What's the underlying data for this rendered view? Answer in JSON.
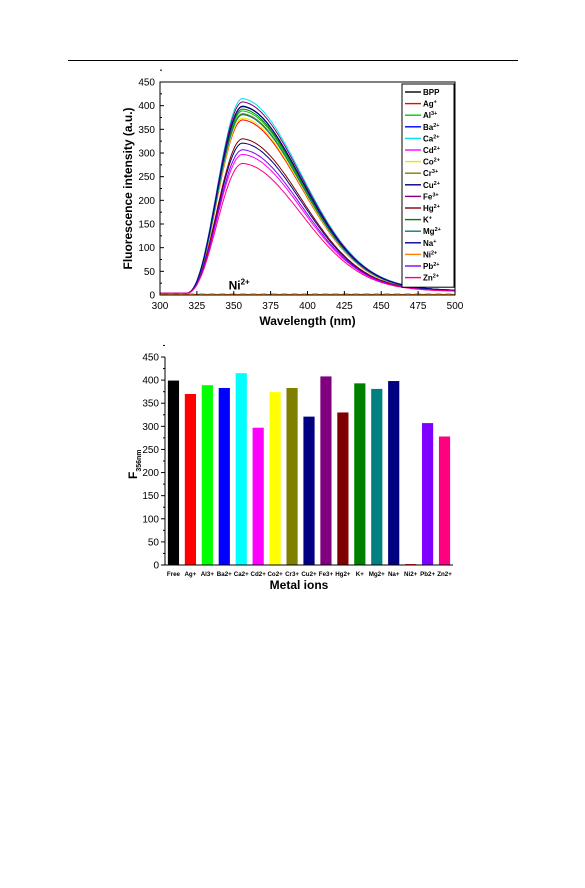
{
  "chart_data": [
    {
      "type": "line",
      "xlabel": "Wavelength (nm)",
      "ylabel": "Fluorescence intensity (a.u.)",
      "xlim": [
        300,
        500
      ],
      "ylim": [
        0,
        450
      ],
      "xticks": [
        "300",
        "325",
        "350",
        "375",
        "400",
        "425",
        "450",
        "475",
        "500"
      ],
      "yticks": [
        "0",
        "50",
        "100",
        "150",
        "200",
        "250",
        "300",
        "350",
        "400",
        "450"
      ],
      "legend_position": "right",
      "annotation": {
        "base": "Ni",
        "sup": "2+",
        "x": 356,
        "y": 12
      },
      "series": [
        {
          "name": "BPP",
          "sup": "",
          "color": "#000000",
          "peak": 399
        },
        {
          "name": "Ag",
          "sup": "+",
          "color": "#ff0000",
          "peak": 370
        },
        {
          "name": "Al",
          "sup": "3+",
          "color": "#00cc00",
          "peak": 389
        },
        {
          "name": "Ba",
          "sup": "2+",
          "color": "#0000ff",
          "peak": 383
        },
        {
          "name": "Ca",
          "sup": "2+",
          "color": "#00e5ee",
          "peak": 415
        },
        {
          "name": "Cd",
          "sup": "2+",
          "color": "#ff00ff",
          "peak": 297
        },
        {
          "name": "Co",
          "sup": "2+",
          "color": "#e8e800",
          "peak": 374
        },
        {
          "name": "Cr",
          "sup": "3+",
          "color": "#808000",
          "peak": 383
        },
        {
          "name": "Cu",
          "sup": "2+",
          "color": "#000080",
          "peak": 321
        },
        {
          "name": "Fe",
          "sup": "3+",
          "color": "#800080",
          "peak": 408
        },
        {
          "name": "Hg",
          "sup": "2+",
          "color": "#800000",
          "peak": 330
        },
        {
          "name": "K",
          "sup": "+",
          "color": "#008000",
          "peak": 393
        },
        {
          "name": "Mg",
          "sup": "2+",
          "color": "#008080",
          "peak": 381
        },
        {
          "name": "Na",
          "sup": "+",
          "color": "#000099",
          "peak": 398
        },
        {
          "name": "Ni",
          "sup": "2+",
          "color": "#ff8000",
          "peak": 2
        },
        {
          "name": "Pb",
          "sup": "2+",
          "color": "#8000ff",
          "peak": 307
        },
        {
          "name": "Zn",
          "sup": "2+",
          "color": "#ff0080",
          "peak": 278
        }
      ]
    },
    {
      "type": "bar",
      "xlabel": "Metal ions",
      "ylabel_base": "F",
      "ylabel_sub": "356nm",
      "ylim": [
        0,
        450
      ],
      "yticks": [
        "0",
        "50",
        "100",
        "150",
        "200",
        "250",
        "300",
        "350",
        "400",
        "450"
      ],
      "categories": [
        "Free",
        "Ag+",
        "Al3+",
        "Ba2+",
        "Ca2+",
        "Cd2+",
        "Co2+",
        "Cr3+",
        "Cu2+",
        "Fe3+",
        "Hg2+",
        "K+",
        "Mg2+",
        "Na+",
        "Ni2+",
        "Pb2+",
        "Zn2+"
      ],
      "values": [
        399,
        370,
        389,
        383,
        415,
        297,
        374,
        383,
        321,
        408,
        330,
        393,
        381,
        398,
        2,
        307,
        278
      ],
      "colors": [
        "#000000",
        "#ff0000",
        "#00ff00",
        "#0000ff",
        "#00ffff",
        "#ff00ff",
        "#ffff00",
        "#808000",
        "#000080",
        "#800080",
        "#800000",
        "#008000",
        "#008080",
        "#000080",
        "#ff0000",
        "#8000ff",
        "#ff0080"
      ]
    }
  ]
}
